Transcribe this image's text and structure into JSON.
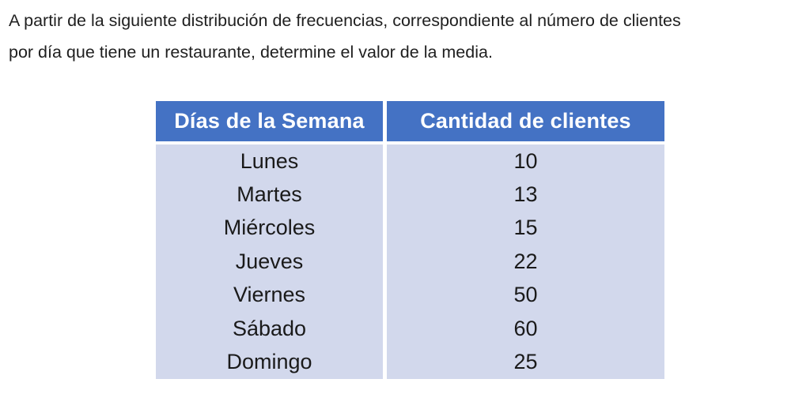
{
  "question": {
    "line1": "A partir de la siguiente distribución de frecuencias, correspondiente al número de clientes",
    "line2": "por día que tiene un restaurante, determine el valor de la media."
  },
  "table": {
    "headers": [
      "Días de la Semana",
      "Cantidad de clientes"
    ],
    "rows": [
      {
        "day": "Lunes",
        "clients": "10"
      },
      {
        "day": "Martes",
        "clients": "13"
      },
      {
        "day": "Miércoles",
        "clients": "15"
      },
      {
        "day": "Jueves",
        "clients": "22"
      },
      {
        "day": "Viernes",
        "clients": "50"
      },
      {
        "day": "Sábado",
        "clients": "60"
      },
      {
        "day": "Domingo",
        "clients": "25"
      }
    ]
  },
  "colors": {
    "header_bg": "#4472C4",
    "header_text": "#FFFFFF",
    "body_bg": "#D2D8EC",
    "body_text": "#1A1A1A"
  }
}
